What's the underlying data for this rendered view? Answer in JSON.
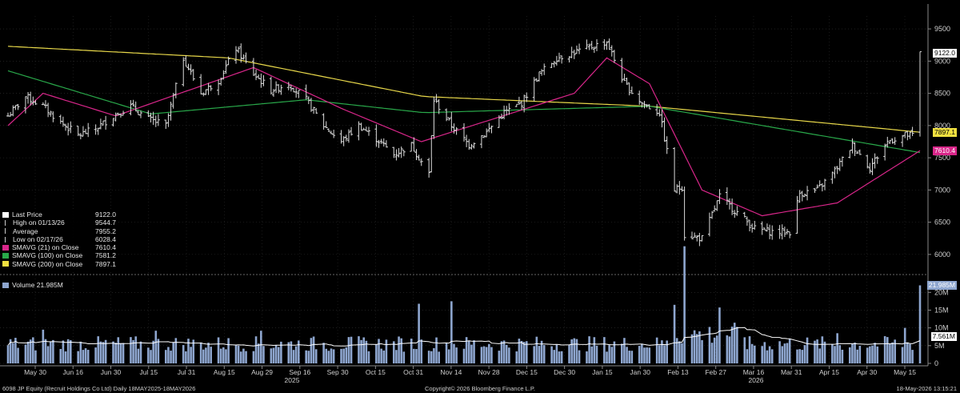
{
  "chart_data": [
    {
      "type": "candlestick",
      "panel": "price",
      "ylim": [
        5750,
        9700
      ],
      "y_ticks": [
        6000,
        6500,
        7000,
        7500,
        8000,
        8500,
        9000,
        9500
      ],
      "x_tick_labels": [
        "May 30",
        "Jun 16",
        "Jun 30",
        "Jul 15",
        "Jul 31",
        "Aug 15",
        "Aug 29",
        "Sep 16",
        "Sep 30",
        "Oct 15",
        "Oct 31",
        "Nov 14",
        "Nov 28",
        "Dec 15",
        "Dec 30",
        "Jan 15",
        "Jan 30",
        "Feb 13",
        "Feb 27",
        "Mar 16",
        "Mar 31",
        "Apr 15",
        "Apr 30",
        "May 15"
      ],
      "x_year_labels": [
        "2025",
        "2026"
      ],
      "close_keypoints": [
        [
          "2025-05-19",
          8150
        ],
        [
          "2025-05-26",
          8450
        ],
        [
          "2025-06-02",
          8300
        ],
        [
          "2025-06-09",
          8050
        ],
        [
          "2025-06-16",
          7850
        ],
        [
          "2025-06-23",
          7950
        ],
        [
          "2025-06-30",
          8150
        ],
        [
          "2025-07-07",
          8300
        ],
        [
          "2025-07-14",
          8100
        ],
        [
          "2025-07-21",
          8000
        ],
        [
          "2025-07-28",
          9050
        ],
        [
          "2025-08-04",
          8500
        ],
        [
          "2025-08-11",
          8700
        ],
        [
          "2025-08-18",
          9200
        ],
        [
          "2025-08-25",
          8800
        ],
        [
          "2025-09-01",
          8550
        ],
        [
          "2025-09-08",
          8650
        ],
        [
          "2025-09-15",
          8400
        ],
        [
          "2025-09-22",
          8000
        ],
        [
          "2025-09-29",
          7750
        ],
        [
          "2025-10-06",
          8000
        ],
        [
          "2025-10-13",
          7800
        ],
        [
          "2025-10-20",
          7550
        ],
        [
          "2025-10-27",
          7700
        ],
        [
          "2025-11-03",
          7250
        ],
        [
          "2025-11-05",
          8400
        ],
        [
          "2025-11-12",
          8000
        ],
        [
          "2025-11-19",
          7700
        ],
        [
          "2025-11-26",
          7900
        ],
        [
          "2025-12-03",
          8200
        ],
        [
          "2025-12-10",
          8350
        ],
        [
          "2025-12-17",
          8800
        ],
        [
          "2025-12-24",
          9050
        ],
        [
          "2026-01-05",
          9200
        ],
        [
          "2026-01-13",
          9300
        ],
        [
          "2026-01-20",
          8650
        ],
        [
          "2026-01-27",
          8350
        ],
        [
          "2026-02-03",
          8200
        ],
        [
          "2026-02-09",
          7000
        ],
        [
          "2026-02-12",
          7050
        ],
        [
          "2026-02-13",
          6300
        ],
        [
          "2026-02-20",
          6250
        ],
        [
          "2026-02-27",
          6900
        ],
        [
          "2026-03-06",
          6650
        ],
        [
          "2026-03-13",
          6400
        ],
        [
          "2026-03-20",
          6350
        ],
        [
          "2026-03-27",
          6350
        ],
        [
          "2026-03-31",
          6950
        ],
        [
          "2026-04-07",
          7000
        ],
        [
          "2026-04-14",
          7300
        ],
        [
          "2026-04-21",
          7700
        ],
        [
          "2026-04-28",
          7350
        ],
        [
          "2026-05-05",
          7750
        ],
        [
          "2026-05-12",
          7850
        ],
        [
          "2026-05-15",
          7850
        ],
        [
          "2026-05-18",
          9122
        ]
      ],
      "sma200_keypoints": [
        [
          "2025-05-19",
          9230
        ],
        [
          "2025-08-15",
          9050
        ],
        [
          "2025-11-01",
          8450
        ],
        [
          "2026-01-30",
          8300
        ],
        [
          "2026-05-18",
          7897
        ]
      ],
      "sma100_keypoints": [
        [
          "2025-05-19",
          8850
        ],
        [
          "2025-07-15",
          8180
        ],
        [
          "2025-09-15",
          8400
        ],
        [
          "2025-11-01",
          8200
        ],
        [
          "2026-01-30",
          8300
        ],
        [
          "2026-05-18",
          7581
        ]
      ],
      "sma21_keypoints": [
        [
          "2025-05-19",
          8000
        ],
        [
          "2025-06-02",
          8500
        ],
        [
          "2025-07-01",
          8150
        ],
        [
          "2025-08-25",
          8900
        ],
        [
          "2025-09-30",
          8250
        ],
        [
          "2025-10-31",
          7750
        ],
        [
          "2025-12-31",
          8500
        ],
        [
          "2026-01-13",
          9050
        ],
        [
          "2026-01-30",
          8650
        ],
        [
          "2026-02-20",
          7000
        ],
        [
          "2026-03-16",
          6600
        ],
        [
          "2026-04-15",
          6800
        ],
        [
          "2026-05-18",
          7610
        ]
      ],
      "legend": [
        {
          "label": "Last Price",
          "value": "9122.0",
          "color": "#ffffff",
          "marker": "square"
        },
        {
          "label": "High on 01/13/26",
          "value": "9544.7",
          "color": "#cccccc",
          "marker": "high"
        },
        {
          "label": "Average",
          "value": "7955.2",
          "color": "#cccccc",
          "marker": "avg"
        },
        {
          "label": "Low on 02/17/26",
          "value": "6028.4",
          "color": "#cccccc",
          "marker": "low"
        },
        {
          "label": "SMAVG (21)  on Close",
          "value": "7610.4",
          "color": "#d9268a",
          "marker": "square"
        },
        {
          "label": "SMAVG (100)  on Close",
          "value": "7581.2",
          "color": "#29a84a",
          "marker": "square"
        },
        {
          "label": "SMAVG (200)  on Close",
          "value": "7897.1",
          "color": "#f0e040",
          "marker": "square"
        }
      ],
      "price_tags": [
        {
          "value": "9122.0",
          "color": "#ffffff",
          "text_color": "#000000"
        },
        {
          "value": "7897.1",
          "color": "#f0e040",
          "text_color": "#000000"
        },
        {
          "value": "7610.4",
          "color": "#d9268a",
          "text_color": "#ffffff"
        }
      ]
    },
    {
      "type": "bar",
      "panel": "volume",
      "ylim": [
        0,
        23000000
      ],
      "y_ticks": [
        "0",
        "5M",
        "10M",
        "15M",
        "20M"
      ],
      "legend": [
        {
          "label": "Volume  21.985M",
          "color": "#8ea6cf"
        }
      ],
      "tags": [
        {
          "value": "21.985M",
          "color": "#8ea6cf"
        },
        {
          "value": "7.561M",
          "color": "#ffffff"
        }
      ],
      "typical_volume_M": 5.5,
      "spikes_M": [
        [
          "2025-06-02",
          9.5
        ],
        [
          "2025-07-17",
          9.2
        ],
        [
          "2025-08-28",
          9.2
        ],
        [
          "2025-10-30",
          16.8
        ],
        [
          "2025-11-12",
          17.5
        ],
        [
          "2026-02-09",
          11
        ],
        [
          "2026-02-13",
          22
        ],
        [
          "2026-02-27",
          10.5
        ],
        [
          "2026-04-15",
          8.5
        ],
        [
          "2026-05-12",
          10
        ],
        [
          "2026-05-18",
          21.985
        ]
      ],
      "moving_average_last_M": 7.561
    }
  ],
  "footer": {
    "left": "6098 JP Equity (Recruit Holdings Co Ltd) Daily 18MAY2025-18MAY2026",
    "center": "Copyright© 2026 Bloomberg Finance L.P.",
    "right": "18-May-2026 13:15:21"
  }
}
